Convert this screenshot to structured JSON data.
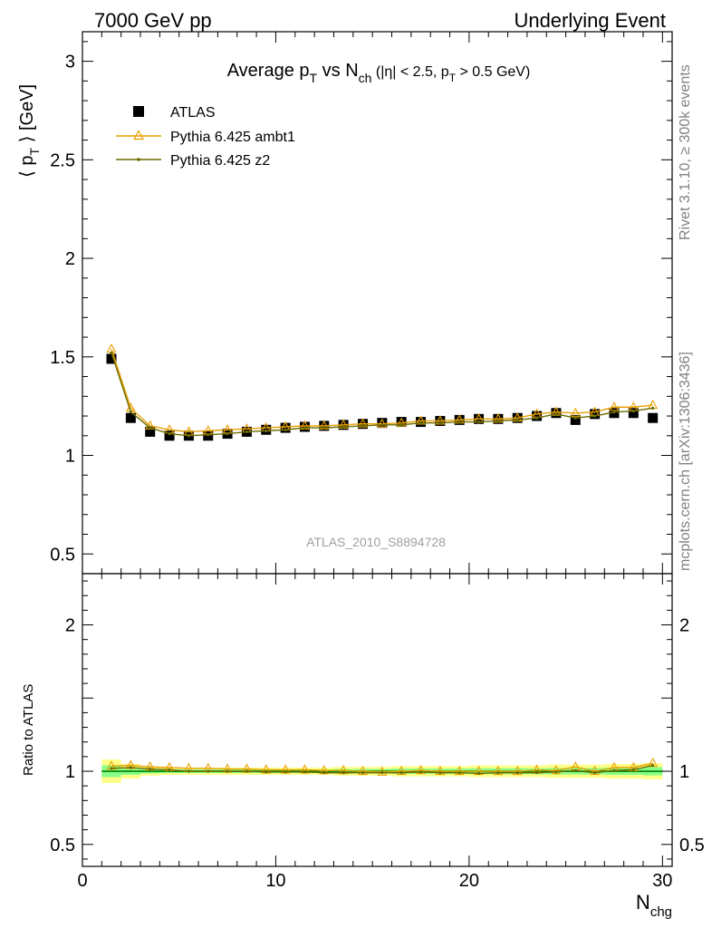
{
  "header": {
    "left": "7000 GeV pp",
    "right": "Underlying Event"
  },
  "side_labels": {
    "top": "Rivet 3.1.10, ≥ 300k events",
    "bottom": "mcplots.cern.ch [arXiv:1306:3436]"
  },
  "colors": {
    "atlas": "#000000",
    "ambt1": "#e8a000",
    "z2": "#6b6b00",
    "band_outer": "#ffff88",
    "band_inner": "#88ff88",
    "ref_line": "#008000"
  },
  "chart_data": [
    {
      "type": "line",
      "panel": "main",
      "title": {
        "prefix": "Average p",
        "sub1": "T",
        "mid": " vs N",
        "sub2": "ch",
        "cuts_a": " (|η| < 2.5, p",
        "sub3": "T",
        "cuts_b": " > 0.5 GeV)"
      },
      "ylabel": {
        "a": "⟨ p",
        "sub": "T",
        "b": " ⟩ [GeV]"
      },
      "xlim": [
        0,
        30.5
      ],
      "ylim": [
        0.4,
        3.15
      ],
      "yticks": [
        0.5,
        1,
        1.5,
        2,
        2.5,
        3
      ],
      "ytick_labels": [
        "0.5",
        "1",
        "1.5",
        "2",
        "2.5",
        "3"
      ],
      "watermark": "ATLAS_2010_S8894728",
      "legend_position": "top-left",
      "x": [
        1.5,
        2.5,
        3.5,
        4.5,
        5.5,
        6.5,
        7.5,
        8.5,
        9.5,
        10.5,
        11.5,
        12.5,
        13.5,
        14.5,
        15.5,
        16.5,
        17.5,
        18.5,
        19.5,
        20.5,
        21.5,
        22.5,
        23.5,
        24.5,
        25.5,
        26.5,
        27.5,
        28.5,
        29.5
      ],
      "series": [
        {
          "name": "ATLAS",
          "style": "square",
          "values": [
            1.49,
            1.19,
            1.12,
            1.1,
            1.1,
            1.1,
            1.11,
            1.12,
            1.13,
            1.14,
            1.145,
            1.15,
            1.155,
            1.16,
            1.165,
            1.17,
            1.17,
            1.175,
            1.18,
            1.185,
            1.185,
            1.19,
            1.2,
            1.215,
            1.18,
            1.21,
            1.215,
            1.215,
            1.19
          ]
        },
        {
          "name": "Pythia 6.425 ambt1",
          "style": "triangle",
          "values": [
            1.54,
            1.24,
            1.15,
            1.13,
            1.12,
            1.125,
            1.13,
            1.135,
            1.14,
            1.145,
            1.15,
            1.15,
            1.155,
            1.16,
            1.16,
            1.165,
            1.175,
            1.175,
            1.18,
            1.185,
            1.185,
            1.19,
            1.21,
            1.22,
            1.215,
            1.22,
            1.245,
            1.245,
            1.255
          ]
        },
        {
          "name": "Pythia 6.425 z2",
          "style": "dot",
          "values": [
            1.52,
            1.22,
            1.14,
            1.11,
            1.1,
            1.105,
            1.11,
            1.12,
            1.125,
            1.13,
            1.14,
            1.14,
            1.145,
            1.15,
            1.155,
            1.155,
            1.165,
            1.165,
            1.17,
            1.17,
            1.175,
            1.18,
            1.19,
            1.21,
            1.19,
            1.2,
            1.22,
            1.225,
            1.24
          ]
        }
      ]
    },
    {
      "type": "line",
      "panel": "ratio",
      "ylabel": "Ratio to ATLAS",
      "xlabel": {
        "main": "N",
        "sub": "chg"
      },
      "xlim": [
        0,
        30.5
      ],
      "ylim": [
        0.35,
        2.35
      ],
      "yticks": [
        0.5,
        1,
        2
      ],
      "ytick_labels": [
        "0.5",
        "1",
        "2"
      ],
      "xticks": [
        0,
        10,
        20,
        30
      ],
      "xtick_labels": [
        "0",
        "10",
        "20",
        "30"
      ],
      "x": [
        1.5,
        2.5,
        3.5,
        4.5,
        5.5,
        6.5,
        7.5,
        8.5,
        9.5,
        10.5,
        11.5,
        12.5,
        13.5,
        14.5,
        15.5,
        16.5,
        17.5,
        18.5,
        19.5,
        20.5,
        21.5,
        22.5,
        23.5,
        24.5,
        25.5,
        26.5,
        27.5,
        28.5,
        29.5
      ],
      "band_outer": [
        0.08,
        0.05,
        0.03,
        0.025,
        0.025,
        0.025,
        0.025,
        0.025,
        0.025,
        0.025,
        0.025,
        0.025,
        0.03,
        0.03,
        0.03,
        0.035,
        0.035,
        0.035,
        0.035,
        0.04,
        0.04,
        0.04,
        0.04,
        0.045,
        0.045,
        0.045,
        0.05,
        0.05,
        0.055
      ],
      "band_inner": [
        0.04,
        0.025,
        0.015,
        0.012,
        0.012,
        0.012,
        0.012,
        0.012,
        0.012,
        0.012,
        0.012,
        0.012,
        0.015,
        0.015,
        0.015,
        0.018,
        0.018,
        0.018,
        0.018,
        0.02,
        0.02,
        0.02,
        0.02,
        0.022,
        0.022,
        0.022,
        0.025,
        0.025,
        0.028
      ],
      "series": [
        {
          "name": "Pythia 6.425 ambt1",
          "style": "triangle",
          "values": [
            1.035,
            1.04,
            1.03,
            1.025,
            1.02,
            1.02,
            1.015,
            1.015,
            1.01,
            1.01,
            1.01,
            1.005,
            1.005,
            1.0,
            0.995,
            1.0,
            1.005,
            1.0,
            1.0,
            1.0,
            1.0,
            1.0,
            1.008,
            1.005,
            1.03,
            1.0,
            1.025,
            1.025,
            1.055
          ]
        },
        {
          "name": "Pythia 6.425 z2",
          "style": "dot",
          "values": [
            1.02,
            1.025,
            1.015,
            1.01,
            1.0,
            1.0,
            1.0,
            1.0,
            0.995,
            0.995,
            0.995,
            0.99,
            0.99,
            0.99,
            0.99,
            0.99,
            0.995,
            0.99,
            0.99,
            0.985,
            0.99,
            0.99,
            0.99,
            0.995,
            1.005,
            0.99,
            1.005,
            1.01,
            1.04
          ]
        }
      ]
    }
  ]
}
